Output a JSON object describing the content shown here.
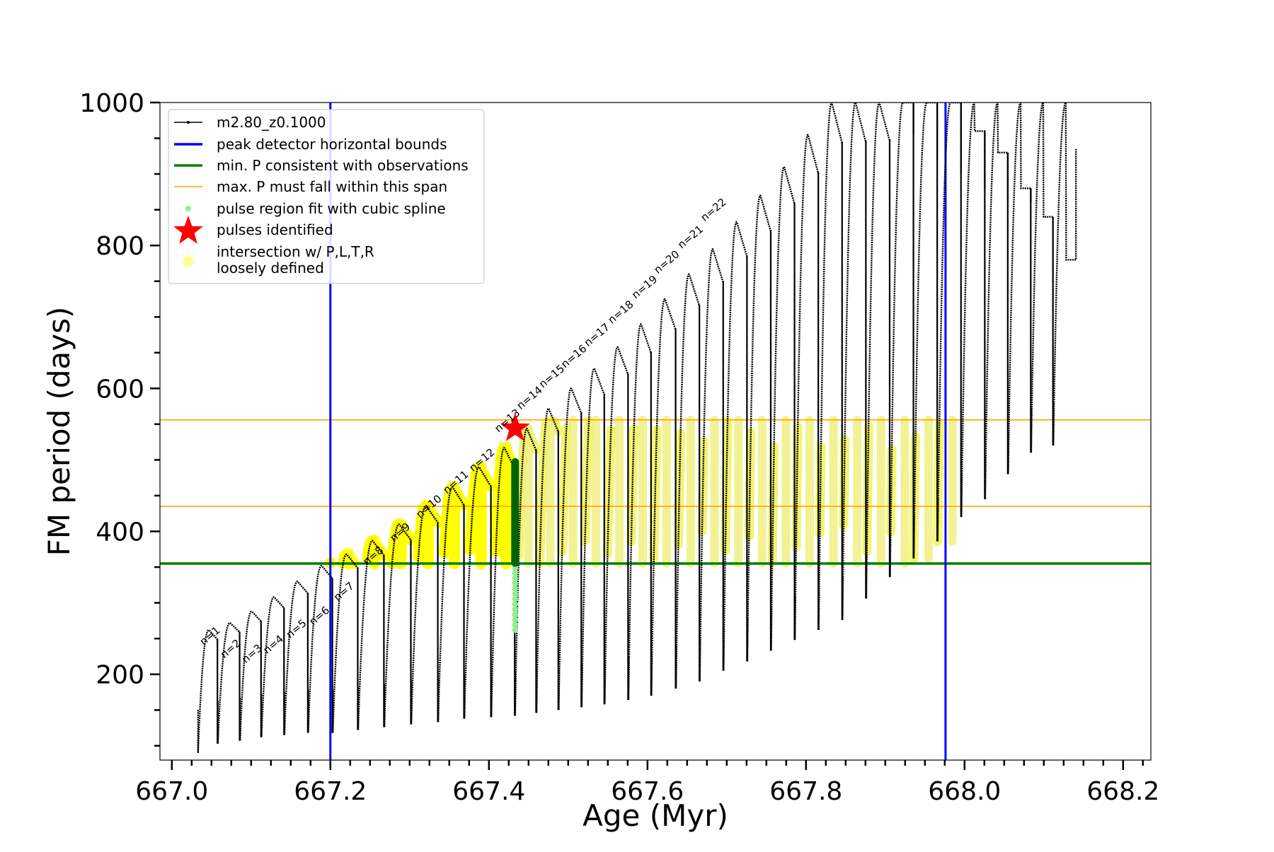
{
  "chart_data": {
    "type": "line",
    "title": "",
    "xlabel": "Age (Myr)",
    "ylabel": "FM period (days)",
    "xlim": [
      666.985,
      668.235
    ],
    "ylim": [
      80,
      1000
    ],
    "xticks_major": [
      667.0,
      667.2,
      667.4,
      667.6,
      667.8,
      668.0,
      668.2
    ],
    "xtick_labels": [
      "667.0",
      "667.2",
      "667.4",
      "667.6",
      "667.8",
      "668.0",
      "668.2"
    ],
    "yticks_major": [
      200,
      400,
      600,
      800,
      1000
    ],
    "ytick_labels": [
      "200",
      "400",
      "600",
      "800",
      "1000"
    ],
    "grid": false,
    "legend_position": "upper-left",
    "legend": [
      {
        "label": "m2.80_z0.1000",
        "kind": "line-marker",
        "color": "#000000"
      },
      {
        "label": "peak detector horizontal bounds",
        "kind": "line",
        "color": "#0000ff"
      },
      {
        "label": "min. P consistent with observations",
        "kind": "line",
        "color": "#008000"
      },
      {
        "label": "max. P must fall within this span",
        "kind": "thin-line",
        "color": "#ffa500"
      },
      {
        "label": "pulse region fit with cubic spline",
        "kind": "dot",
        "color": "#90ee90"
      },
      {
        "label": "pulses identified",
        "kind": "star",
        "color": "#ff0000"
      },
      {
        "label": "intersection w/ P,L,T,R",
        "label2": "loosely defined",
        "kind": "big-dot",
        "color": "#ffff99"
      }
    ],
    "vertical_lines": [
      {
        "x": 667.2,
        "color": "#0000ff"
      },
      {
        "x": 667.976,
        "color": "#0000ff"
      }
    ],
    "horizontal_lines": [
      {
        "y": 355,
        "color": "#008000",
        "width": 3.5
      },
      {
        "y": 435,
        "color": "#ffa500",
        "width": 1.6
      },
      {
        "y": 556,
        "color": "#ffa500",
        "width": 1.6
      }
    ],
    "series": [
      {
        "name": "m2.80_z0.1000",
        "color": "#000000",
        "pulses_t": [
          667.033,
          667.058,
          667.086,
          667.113,
          667.142,
          667.172,
          667.203,
          667.235,
          667.268,
          667.302,
          667.336,
          667.369,
          667.403,
          667.433,
          667.46,
          667.488,
          667.517,
          667.546,
          667.576,
          667.605,
          667.636,
          667.666,
          667.696,
          667.726,
          667.756,
          667.786,
          667.816,
          667.846,
          667.876,
          667.906,
          667.936,
          667.966,
          667.996,
          668.026,
          668.055,
          668.084,
          668.112
        ],
        "pulses_peak": [
          262,
          272,
          288,
          308,
          330,
          352,
          368,
          387,
          410,
          436,
          462,
          490,
          517,
          544,
          572,
          600,
          628,
          658,
          690,
          725,
          760,
          795,
          833,
          870,
          910,
          955,
          1000,
          1000,
          1000,
          1000,
          1000,
          1000,
          1000,
          1000,
          1000,
          1000,
          1000
        ],
        "pulses_trough": [
          90,
          103,
          107,
          112,
          115,
          118,
          118,
          122,
          126,
          130,
          133,
          138,
          140,
          142,
          146,
          150,
          154,
          158,
          164,
          170,
          180,
          190,
          205,
          218,
          233,
          248,
          262,
          276,
          306,
          336,
          362,
          386,
          420,
          445,
          480,
          510,
          520
        ],
        "pulses_tail": [
          null,
          null,
          null,
          null,
          null,
          null,
          null,
          null,
          null,
          null,
          null,
          null,
          null,
          null,
          null,
          null,
          null,
          null,
          null,
          null,
          null,
          null,
          null,
          null,
          null,
          null,
          null,
          null,
          null,
          1000,
          1000,
          1000,
          960,
          930,
          880,
          840,
          780
        ],
        "pulses_end": [
          null,
          null,
          null,
          null,
          null,
          null,
          null,
          null,
          null,
          null,
          null,
          null,
          null,
          null,
          null,
          null,
          null,
          null,
          null,
          null,
          null,
          null,
          null,
          null,
          null,
          null,
          null,
          null,
          null,
          955,
          920,
          900,
          880,
          865,
          860,
          840,
          935
        ]
      },
      {
        "name": "pulse region fit with cubic spline",
        "color": "#90ee90",
        "x": 667.433,
        "y_range": [
          262,
          356
        ]
      },
      {
        "name": "pulses identified",
        "color": "#ff0000",
        "points": [
          [
            667.433,
            544
          ]
        ]
      },
      {
        "name": "intersection w/ P,L,T,R loosely defined",
        "color": "#ffff00",
        "ymin": 355,
        "ymax": 556,
        "strong_until_index": 12,
        "highlight_dot": [
          667.2,
          356
        ]
      },
      {
        "name": "spline fit selection",
        "color": "#006400",
        "x": 667.433,
        "y_range": [
          356,
          497
        ]
      }
    ],
    "annotations": [
      {
        "text": "n=1",
        "x": 667.04,
        "y": 240
      },
      {
        "text": "n=2",
        "x": 667.066,
        "y": 222
      },
      {
        "text": "n=3",
        "x": 667.093,
        "y": 215
      },
      {
        "text": "n=4",
        "x": 667.12,
        "y": 228
      },
      {
        "text": "n=5",
        "x": 667.149,
        "y": 250
      },
      {
        "text": "n=6",
        "x": 667.178,
        "y": 268
      },
      {
        "text": "n=7",
        "x": 667.209,
        "y": 302
      },
      {
        "text": "n=8",
        "x": 667.246,
        "y": 352
      },
      {
        "text": "n=9",
        "x": 667.28,
        "y": 385
      },
      {
        "text": "n=10",
        "x": 667.313,
        "y": 418
      },
      {
        "text": "n=11",
        "x": 667.347,
        "y": 452
      },
      {
        "text": "n=12",
        "x": 667.38,
        "y": 483
      },
      {
        "text": "n=13",
        "x": 667.412,
        "y": 538
      },
      {
        "text": "n=14",
        "x": 667.44,
        "y": 570
      },
      {
        "text": "n=15",
        "x": 667.468,
        "y": 600
      },
      {
        "text": "n=16",
        "x": 667.496,
        "y": 628
      },
      {
        "text": "n=17",
        "x": 667.525,
        "y": 658
      },
      {
        "text": "n=18",
        "x": 667.555,
        "y": 690
      },
      {
        "text": "n=19",
        "x": 667.585,
        "y": 725
      },
      {
        "text": "n=20",
        "x": 667.613,
        "y": 760
      },
      {
        "text": "n=21",
        "x": 667.643,
        "y": 795
      },
      {
        "text": "n=22",
        "x": 667.672,
        "y": 833
      }
    ]
  }
}
